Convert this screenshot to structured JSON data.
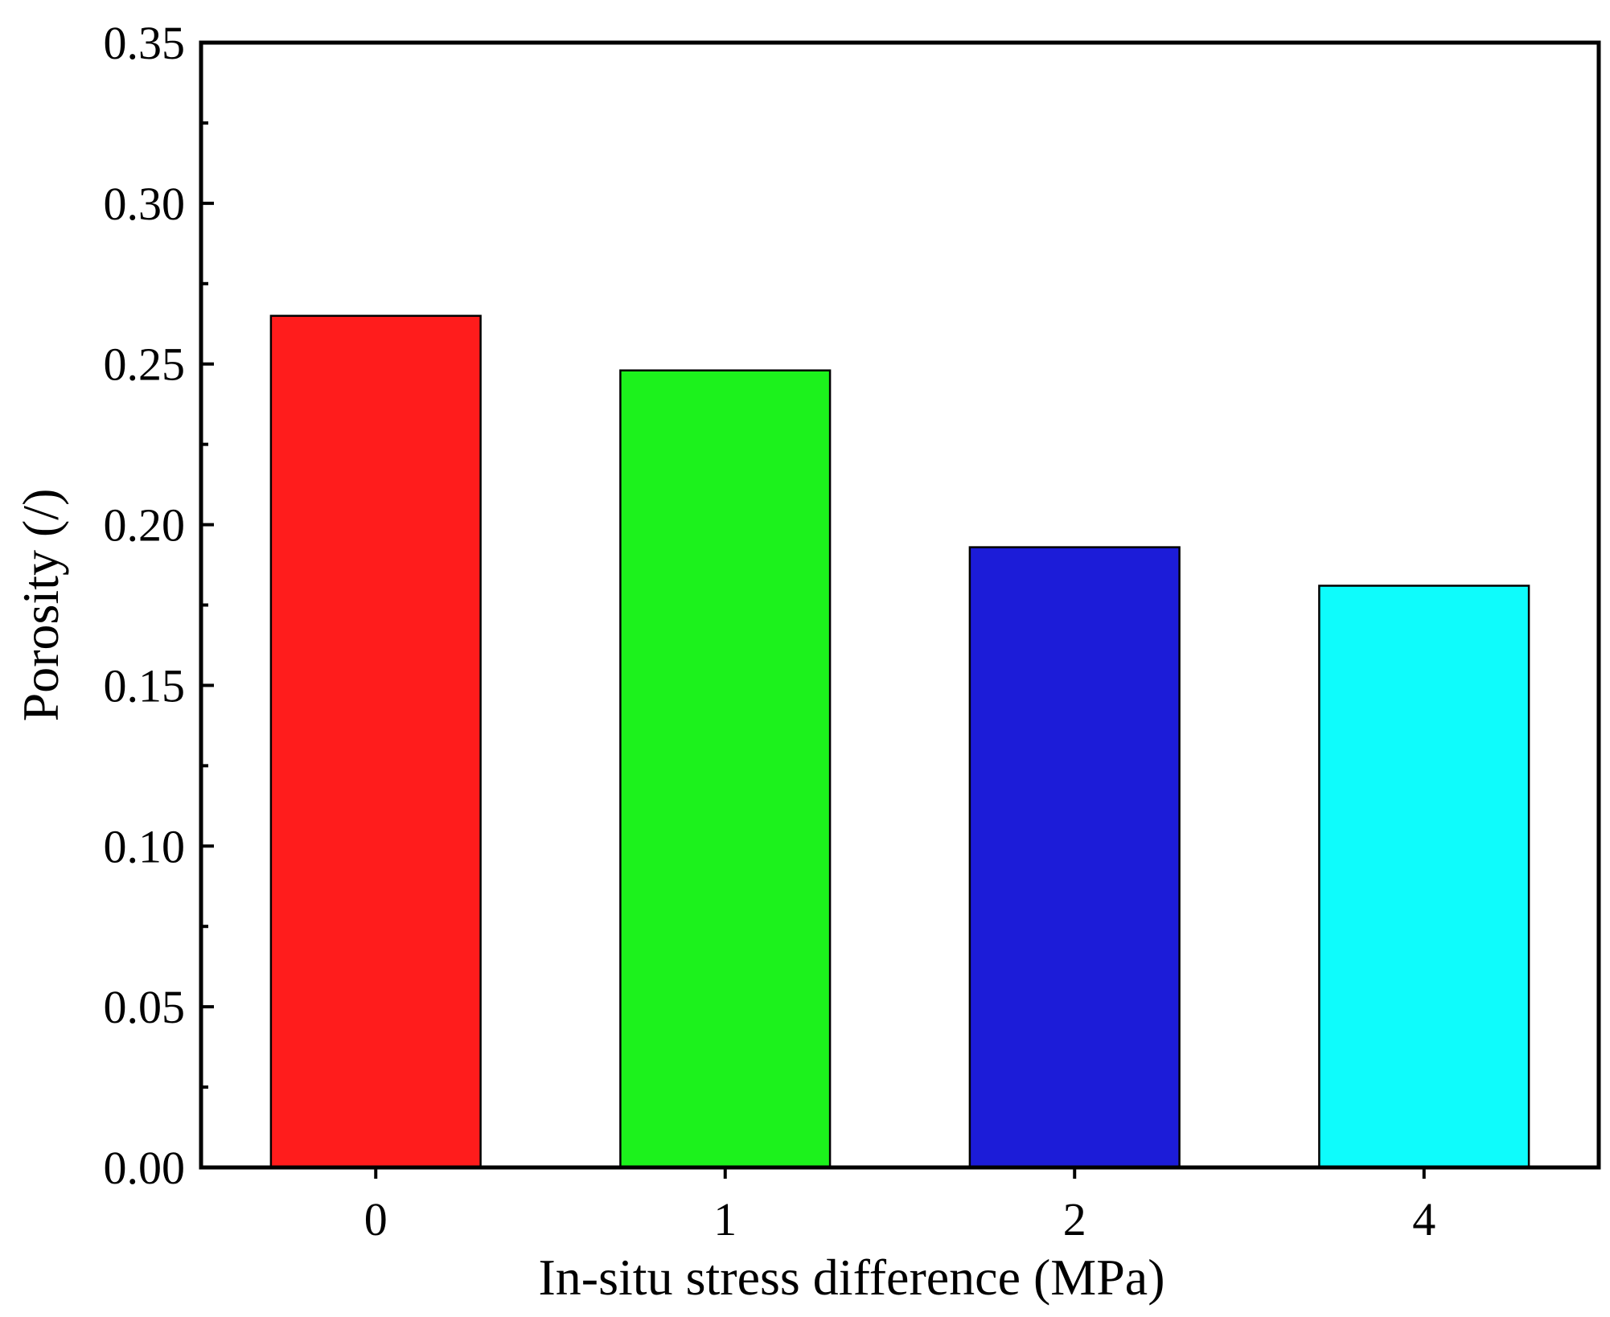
{
  "chart_data": {
    "type": "bar",
    "title": "",
    "xlabel": "In-situ stress difference (MPa)",
    "ylabel": "Porosity (/)",
    "categories": [
      "0",
      "1",
      "2",
      "4"
    ],
    "values": [
      0.265,
      0.248,
      0.193,
      0.181
    ],
    "bar_colors": [
      "#ff1c1c",
      "#1cf21c",
      "#1c1cd8",
      "#0efcfc"
    ],
    "ylim": [
      0,
      0.35
    ],
    "yticks": [
      0.0,
      0.05,
      0.1,
      0.15,
      0.2,
      0.25,
      0.3,
      0.35
    ],
    "ytick_labels": [
      "0.00",
      "0.05",
      "0.10",
      "0.15",
      "0.20",
      "0.25",
      "0.30",
      "0.35"
    ],
    "minor_ticks_per_interval": 1,
    "grid": false,
    "legend": "none"
  }
}
